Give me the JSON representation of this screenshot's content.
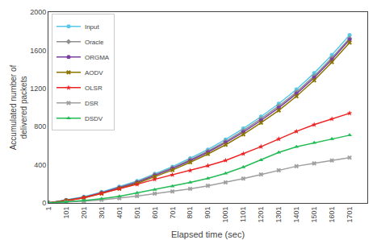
{
  "chart_data": {
    "type": "line",
    "xlabel": "Elapsed time (sec)",
    "ylabel": "Accumulated number of\ndelivered packets",
    "x": [
      1,
      101,
      201,
      301,
      401,
      501,
      601,
      701,
      801,
      901,
      1001,
      1101,
      1201,
      1301,
      1401,
      1501,
      1601,
      1701
    ],
    "xlim": [
      1,
      1801
    ],
    "xticks": [
      1,
      101,
      201,
      301,
      401,
      501,
      601,
      701,
      801,
      901,
      1001,
      1101,
      1201,
      1301,
      1401,
      1501,
      1601,
      1701
    ],
    "ylim": [
      0,
      2000
    ],
    "yticks": [
      0,
      400,
      800,
      1200,
      1600,
      2000
    ],
    "grid": false,
    "legend": "upper left",
    "series": [
      {
        "name": "Input",
        "color": "#56C8E8",
        "marker": "circle",
        "values": [
          0,
          30,
          65,
          115,
          170,
          230,
          305,
          380,
          468,
          560,
          665,
          780,
          905,
          1040,
          1190,
          1360,
          1550,
          1760
        ]
      },
      {
        "name": "Oracle",
        "color": "#909090",
        "marker": "diamond",
        "values": [
          0,
          28,
          60,
          108,
          162,
          220,
          295,
          368,
          453,
          543,
          645,
          758,
          882,
          1015,
          1162,
          1330,
          1520,
          1725
        ]
      },
      {
        "name": "ORGMA",
        "color": "#7B3FA0",
        "marker": "circle",
        "values": [
          0,
          27,
          58,
          105,
          158,
          215,
          288,
          360,
          443,
          532,
          632,
          742,
          865,
          997,
          1145,
          1312,
          1502,
          1710
        ]
      },
      {
        "name": "AODV",
        "color": "#8B7500",
        "marker": "x",
        "values": [
          0,
          25,
          53,
          98,
          150,
          205,
          275,
          345,
          426,
          513,
          610,
          718,
          840,
          970,
          1118,
          1285,
          1475,
          1680
        ]
      },
      {
        "name": "OLSR",
        "color": "#EE2222",
        "marker": "star",
        "values": [
          0,
          20,
          55,
          100,
          148,
          195,
          248,
          295,
          340,
          390,
          445,
          515,
          590,
          670,
          750,
          820,
          880,
          940
        ]
      },
      {
        "name": "DSR",
        "color": "#A0A0A0",
        "marker": "x",
        "values": [
          0,
          8,
          18,
          32,
          50,
          72,
          98,
          120,
          148,
          180,
          215,
          255,
          298,
          342,
          385,
          415,
          445,
          475
        ]
      },
      {
        "name": "DSDV",
        "color": "#22BB55",
        "marker": "triangle-up",
        "values": [
          0,
          10,
          25,
          45,
          70,
          105,
          140,
          175,
          215,
          258,
          310,
          375,
          450,
          530,
          588,
          630,
          670,
          710
        ]
      }
    ]
  }
}
